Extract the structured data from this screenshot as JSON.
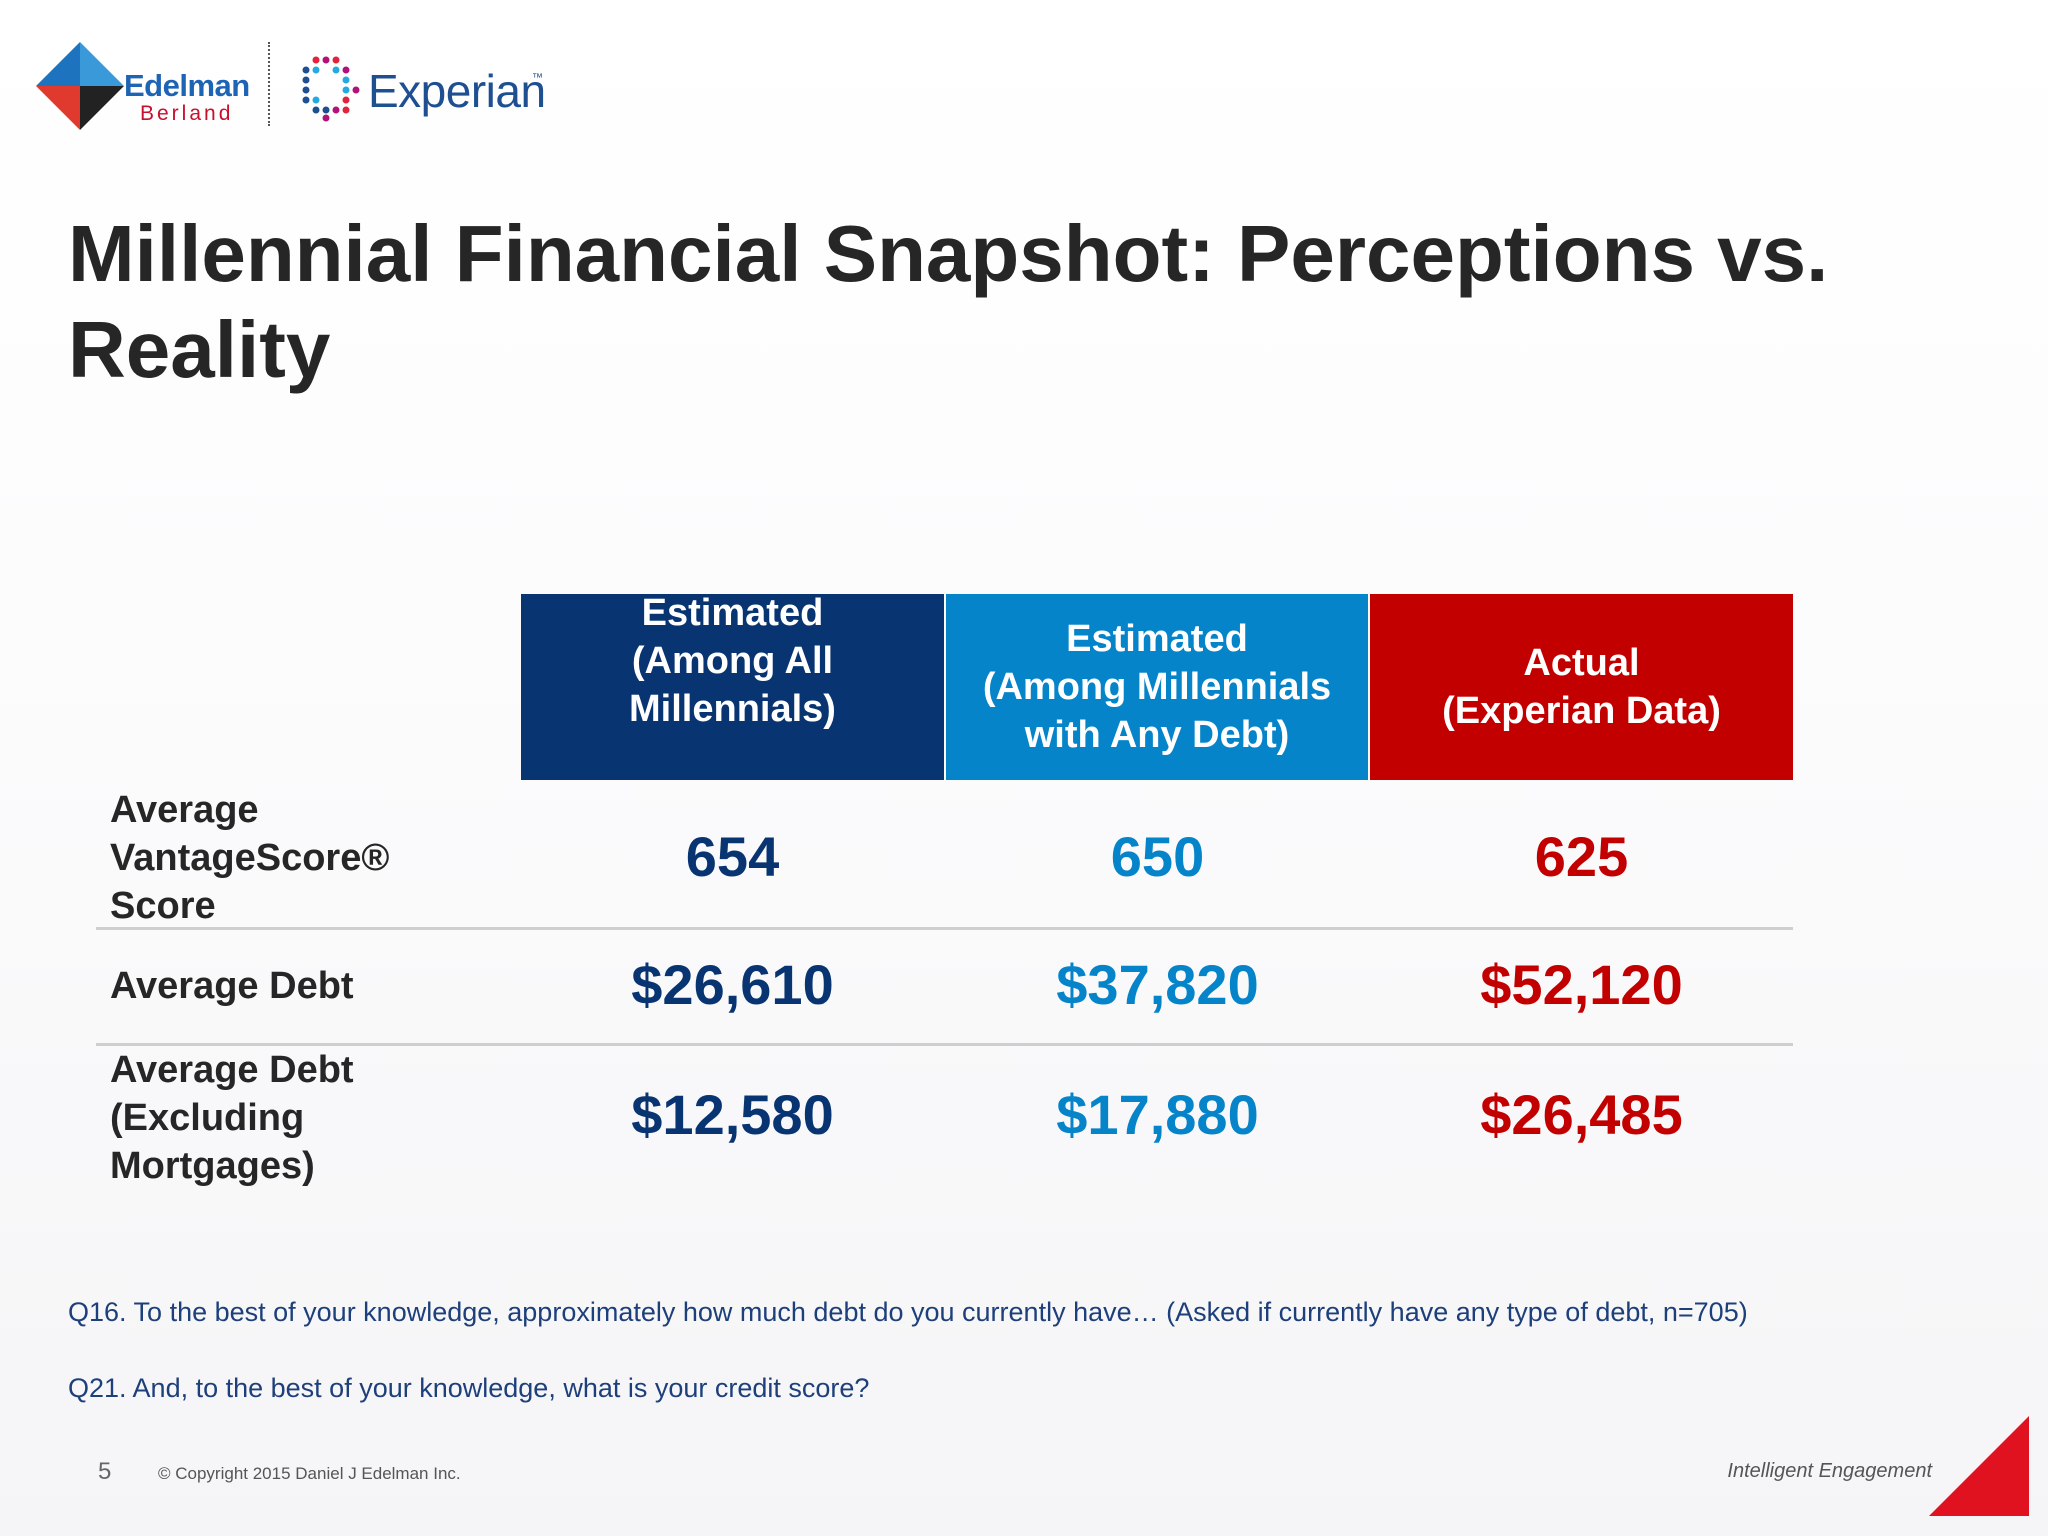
{
  "logos": {
    "edelman": {
      "name": "Edelman",
      "sub": "Berland"
    },
    "experian": {
      "name": "Experian",
      "tm": "™"
    }
  },
  "title": "Millennial Financial Snapshot: Perceptions vs. Reality",
  "table": {
    "headers": [
      "Estimated\n(Among All\nMillennials)",
      "Estimated\n(Among Millennials\nwith Any Debt)",
      "Actual\n(Experian Data)"
    ],
    "rows": [
      {
        "label": "Average VantageScore® Score",
        "values": [
          "654",
          "650",
          "625"
        ]
      },
      {
        "label": "Average Debt",
        "values": [
          "$26,610",
          "$37,820",
          "$52,120"
        ]
      },
      {
        "label": "Average Debt (Excluding Mortgages)",
        "values": [
          "$12,580",
          "$17,880",
          "$26,485"
        ]
      }
    ]
  },
  "notes": [
    "Q16. To the best of your knowledge, approximately how much debt do you currently have… (Asked if currently have any type of debt, n=705)",
    "Q21. And, to the best of your knowledge, what is your credit score?"
  ],
  "footer": {
    "page_number": "5",
    "copyright": "© Copyright 2015 Daniel J Edelman Inc.",
    "tagline": "Intelligent Engagement"
  },
  "colors": {
    "navy": "#083572",
    "blue": "#0584c9",
    "red": "#c20000"
  }
}
